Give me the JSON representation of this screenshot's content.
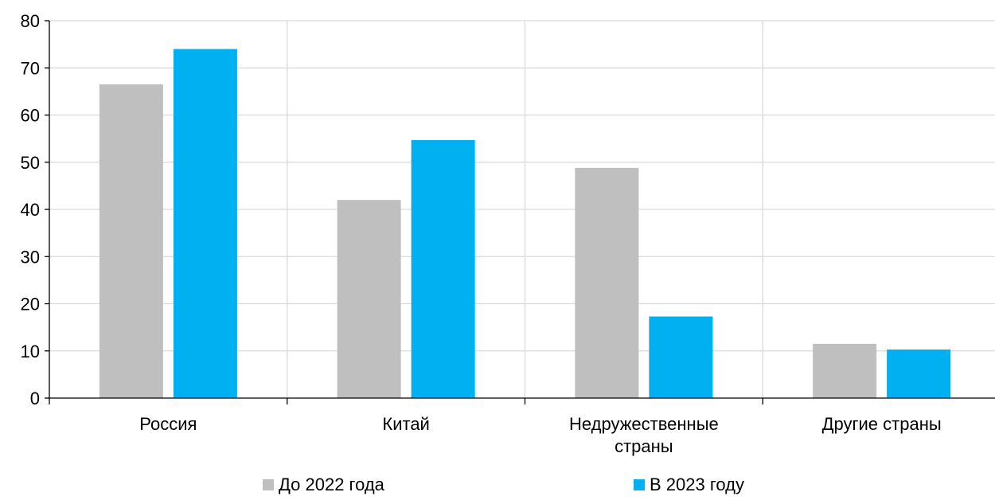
{
  "chart_data": {
    "type": "bar",
    "categories": [
      [
        "Россия"
      ],
      [
        "Китай"
      ],
      [
        "Недружественные",
        "страны"
      ],
      [
        "Другие страны"
      ]
    ],
    "series": [
      {
        "name": "До 2022 года",
        "color": "#bfbfbf",
        "values": [
          66.5,
          42,
          48.8,
          11.5
        ]
      },
      {
        "name": "В 2023 году",
        "color": "#00b0f0",
        "values": [
          74,
          54.7,
          17.3,
          10.3
        ]
      }
    ],
    "yticks": [
      "0",
      "10",
      "20",
      "30",
      "40",
      "50",
      "60",
      "70",
      "80"
    ],
    "ylim": [
      0,
      80
    ],
    "grid": true,
    "legend_position": "bottom"
  }
}
